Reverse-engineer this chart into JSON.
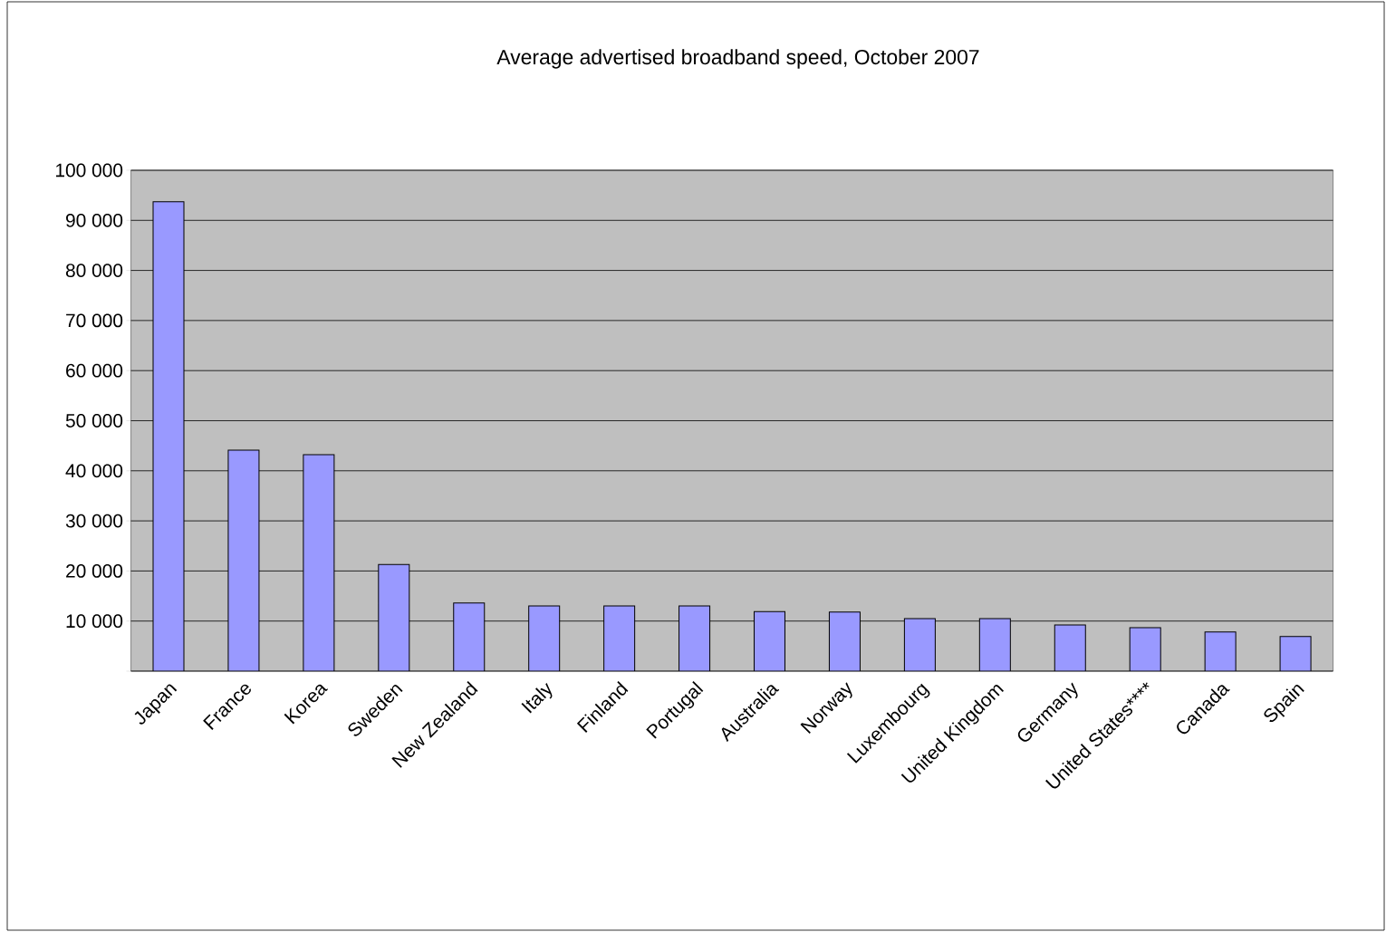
{
  "chart_data": {
    "type": "bar",
    "title": "Average advertised broadband speed, October 2007",
    "categories": [
      "Japan",
      "France",
      "Korea",
      "Sweden",
      "New Zealand",
      "Italy",
      "Finland",
      "Portugal",
      "Australia",
      "Norway",
      "Luxembourg",
      "United Kingdom",
      "Germany",
      "United States****",
      "Canada",
      "Spain"
    ],
    "values": [
      93700,
      44100,
      43200,
      21300,
      13600,
      13000,
      13000,
      13000,
      11900,
      11800,
      10500,
      10500,
      9200,
      8700,
      7800,
      6900
    ],
    "color": "#9999ff",
    "ylim": [
      0,
      100000
    ],
    "yticks": [
      {
        "value": 0,
        "label": null
      },
      {
        "value": 10000,
        "label": "10 000"
      },
      {
        "value": 20000,
        "label": "20 000"
      },
      {
        "value": 30000,
        "label": "30 000"
      },
      {
        "value": 40000,
        "label": "40 000"
      },
      {
        "value": 50000,
        "label": "50 000"
      },
      {
        "value": 60000,
        "label": "60 000"
      },
      {
        "value": 70000,
        "label": "70 000"
      },
      {
        "value": 80000,
        "label": "80 000"
      },
      {
        "value": 90000,
        "label": "90 000"
      },
      {
        "value": 100000,
        "label": "100 000"
      }
    ],
    "grid": "y"
  }
}
